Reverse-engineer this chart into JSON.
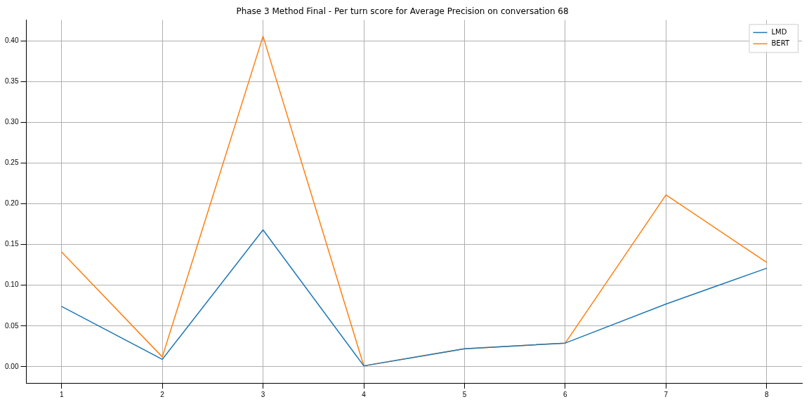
{
  "chart_data": {
    "type": "line",
    "title": "Phase 3 Method Final - Per turn score for Average Precision on conversation 68",
    "x": [
      1,
      2,
      3,
      4,
      5,
      6,
      7,
      8
    ],
    "series": [
      {
        "name": "LMD",
        "color": "#1f77b4",
        "values": [
          0.074,
          0.009,
          0.168,
          0.001,
          0.022,
          0.029,
          0.077,
          0.121
        ]
      },
      {
        "name": "BERT",
        "color": "#ff7f0e",
        "values": [
          0.141,
          0.012,
          0.406,
          0.001,
          0.022,
          0.029,
          0.211,
          0.128
        ]
      }
    ],
    "xlim": [
      0.65,
      8.35
    ],
    "xticks": [
      1,
      2,
      3,
      4,
      5,
      6,
      7,
      8
    ],
    "ylim": [
      -0.02,
      0.426
    ],
    "yticks": [
      {
        "value": 0,
        "label": "0.00"
      },
      {
        "value": 0.05,
        "label": "0.05"
      },
      {
        "value": 0.1,
        "label": "0.10"
      },
      {
        "value": 0.15,
        "label": "0.15"
      },
      {
        "value": 0.2,
        "label": "0.20"
      },
      {
        "value": 0.25,
        "label": "0.25"
      },
      {
        "value": 0.3,
        "label": "0.30"
      },
      {
        "value": 0.35,
        "label": "0.35"
      },
      {
        "value": 0.4,
        "label": "0.40"
      }
    ],
    "grid": true,
    "legend": "top right",
    "marker": "none",
    "line_style": "solid"
  }
}
